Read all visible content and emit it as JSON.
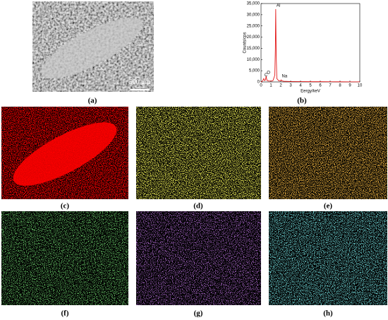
{
  "panels": [
    "(a)",
    "(b)",
    "(c)",
    "(d)",
    "(e)",
    "(f)",
    "(g)",
    "(h)"
  ],
  "scale_bar": "500 μm",
  "chart_data": {
    "type": "line",
    "xlabel": "Eergy/keV",
    "ylabel": "Counts/cps",
    "color": "#e00000",
    "x": [
      0,
      0.1,
      0.2,
      0.28,
      0.35,
      0.45,
      0.52,
      0.6,
      0.8,
      1.0,
      1.2,
      1.4,
      1.45,
      1.49,
      1.53,
      1.6,
      1.8,
      2.0,
      2.04,
      2.1,
      2.3,
      3,
      4,
      5,
      6,
      7,
      8,
      9,
      10
    ],
    "values": [
      0,
      200,
      800,
      1500,
      600,
      900,
      2500,
      700,
      400,
      400,
      500,
      3000,
      15000,
      32500,
      14000,
      1500,
      500,
      600,
      900,
      500,
      300,
      200,
      150,
      100,
      100,
      80,
      60,
      50,
      40
    ],
    "annotations": [
      {
        "text": "C",
        "x": 0.28,
        "y": 1500
      },
      {
        "text": "O",
        "x": 0.52,
        "y": 2500
      },
      {
        "text": "Al",
        "x": 1.49,
        "y": 32500
      },
      {
        "text": "Na",
        "x": 2.04,
        "y": 900
      }
    ],
    "xlim": [
      0,
      10
    ],
    "xticks": [
      0,
      1,
      2,
      3,
      4,
      5,
      6,
      7,
      8,
      9,
      10
    ],
    "ylim": [
      0,
      35000
    ],
    "yticks": [
      0,
      {
        "value": 5000,
        "label": "5,000"
      },
      {
        "value": 10000,
        "label": "10,000"
      },
      {
        "value": 15000,
        "label": "15,000"
      },
      {
        "value": 20000,
        "label": "20,000"
      },
      {
        "value": 25000,
        "label": "25,000"
      },
      {
        "value": 30000,
        "label": "30,000"
      },
      {
        "value": 35000,
        "label": "35,000"
      }
    ]
  }
}
